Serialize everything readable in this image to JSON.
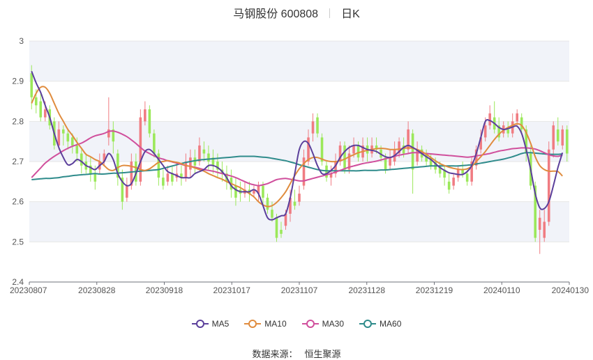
{
  "header": {
    "title": "马钢股份 600808",
    "period": "日K"
  },
  "source": {
    "label": "数据来源：",
    "value": "恒生聚源"
  },
  "chart_data": {
    "type": "candlestick",
    "yticks": [
      2.4,
      2.5,
      2.6,
      2.7,
      2.8,
      2.9,
      3
    ],
    "ylim": [
      2.4,
      3.0
    ],
    "x_tick_labels": [
      "20230807",
      "20230828",
      "20230918",
      "20231017",
      "20231107",
      "20231128",
      "20231219",
      "20240110",
      "20240130"
    ],
    "colors": {
      "up": "#f07c82",
      "down": "#9be85a",
      "ma5": "#5b3f9b",
      "ma10": "#e08c3e",
      "ma30": "#d04f9c",
      "ma60": "#2e8b8b",
      "band": "#f1f3f9",
      "grid": "#e6e6e6"
    },
    "legend": [
      {
        "name": "MA5",
        "color": "#5b3f9b"
      },
      {
        "name": "MA10",
        "color": "#e08c3e"
      },
      {
        "name": "MA30",
        "color": "#d04f9c"
      },
      {
        "name": "MA60",
        "color": "#2e8b8b"
      }
    ],
    "candles": [
      [
        2.92,
        2.86,
        2.94,
        2.83
      ],
      [
        2.86,
        2.84,
        2.88,
        2.82
      ],
      [
        2.85,
        2.81,
        2.87,
        2.8
      ],
      [
        2.81,
        2.83,
        2.85,
        2.8
      ],
      [
        2.83,
        2.79,
        2.84,
        2.78
      ],
      [
        2.8,
        2.74,
        2.81,
        2.73
      ],
      [
        2.74,
        2.78,
        2.8,
        2.73
      ],
      [
        2.78,
        2.77,
        2.79,
        2.74
      ],
      [
        2.77,
        2.75,
        2.78,
        2.73
      ],
      [
        2.76,
        2.74,
        2.77,
        2.72
      ],
      [
        2.74,
        2.72,
        2.76,
        2.7
      ],
      [
        2.72,
        2.69,
        2.73,
        2.67
      ],
      [
        2.7,
        2.68,
        2.72,
        2.67
      ],
      [
        2.69,
        2.67,
        2.71,
        2.65
      ],
      [
        2.67,
        2.65,
        2.69,
        2.63
      ],
      [
        2.68,
        2.7,
        2.72,
        2.67
      ],
      [
        2.7,
        2.72,
        2.73,
        2.69
      ],
      [
        2.76,
        2.78,
        2.86,
        2.74
      ],
      [
        2.78,
        2.75,
        2.8,
        2.72
      ],
      [
        2.72,
        2.66,
        2.73,
        2.64
      ],
      [
        2.66,
        2.6,
        2.68,
        2.58
      ],
      [
        2.61,
        2.64,
        2.66,
        2.6
      ],
      [
        2.64,
        2.7,
        2.72,
        2.63
      ],
      [
        2.7,
        2.65,
        2.72,
        2.64
      ],
      [
        2.65,
        2.81,
        2.83,
        2.64
      ],
      [
        2.8,
        2.83,
        2.85,
        2.79
      ],
      [
        2.83,
        2.77,
        2.84,
        2.76
      ],
      [
        2.77,
        2.72,
        2.78,
        2.71
      ],
      [
        2.72,
        2.66,
        2.73,
        2.64
      ],
      [
        2.66,
        2.64,
        2.68,
        2.63
      ],
      [
        2.65,
        2.67,
        2.69,
        2.64
      ],
      [
        2.67,
        2.65,
        2.69,
        2.64
      ],
      [
        2.66,
        2.67,
        2.7,
        2.65
      ],
      [
        2.67,
        2.66,
        2.69,
        2.64
      ],
      [
        2.66,
        2.7,
        2.72,
        2.65
      ],
      [
        2.68,
        2.71,
        2.73,
        2.66
      ],
      [
        2.71,
        2.69,
        2.73,
        2.67
      ],
      [
        2.7,
        2.74,
        2.76,
        2.69
      ],
      [
        2.73,
        2.72,
        2.75,
        2.7
      ],
      [
        2.72,
        2.7,
        2.74,
        2.68
      ],
      [
        2.71,
        2.69,
        2.73,
        2.67
      ],
      [
        2.7,
        2.68,
        2.72,
        2.66
      ],
      [
        2.68,
        2.67,
        2.7,
        2.65
      ],
      [
        2.67,
        2.65,
        2.69,
        2.63
      ],
      [
        2.66,
        2.63,
        2.68,
        2.61
      ],
      [
        2.64,
        2.61,
        2.66,
        2.59
      ],
      [
        2.63,
        2.62,
        2.65,
        2.6
      ],
      [
        2.62,
        2.63,
        2.65,
        2.61
      ],
      [
        2.63,
        2.62,
        2.65,
        2.6
      ],
      [
        2.62,
        2.63,
        2.64,
        2.61
      ],
      [
        2.62,
        2.64,
        2.65,
        2.6
      ],
      [
        2.64,
        2.61,
        2.65,
        2.59
      ],
      [
        2.61,
        2.58,
        2.62,
        2.57
      ],
      [
        2.58,
        2.56,
        2.6,
        2.55
      ],
      [
        2.56,
        2.51,
        2.57,
        2.5
      ],
      [
        2.53,
        2.52,
        2.55,
        2.51
      ],
      [
        2.54,
        2.57,
        2.58,
        2.53
      ],
      [
        2.57,
        2.61,
        2.63,
        2.55
      ],
      [
        2.6,
        2.59,
        2.63,
        2.58
      ],
      [
        2.6,
        2.62,
        2.64,
        2.59
      ],
      [
        2.64,
        2.71,
        2.73,
        2.63
      ],
      [
        2.7,
        2.76,
        2.78,
        2.69
      ],
      [
        2.77,
        2.8,
        2.82,
        2.75
      ],
      [
        2.81,
        2.77,
        2.82,
        2.76
      ],
      [
        2.76,
        2.7,
        2.77,
        2.69
      ],
      [
        2.69,
        2.66,
        2.7,
        2.65
      ],
      [
        2.66,
        2.67,
        2.69,
        2.64
      ],
      [
        2.67,
        2.7,
        2.72,
        2.66
      ],
      [
        2.7,
        2.74,
        2.75,
        2.69
      ],
      [
        2.74,
        2.68,
        2.75,
        2.67
      ],
      [
        2.68,
        2.72,
        2.74,
        2.67
      ],
      [
        2.72,
        2.74,
        2.76,
        2.71
      ],
      [
        2.74,
        2.71,
        2.75,
        2.7
      ],
      [
        2.71,
        2.74,
        2.76,
        2.7
      ],
      [
        2.74,
        2.72,
        2.76,
        2.7
      ],
      [
        2.72,
        2.74,
        2.76,
        2.71
      ],
      [
        2.74,
        2.73,
        2.76,
        2.72
      ],
      [
        2.73,
        2.71,
        2.74,
        2.7
      ],
      [
        2.71,
        2.68,
        2.72,
        2.67
      ],
      [
        2.69,
        2.71,
        2.73,
        2.68
      ],
      [
        2.7,
        2.73,
        2.75,
        2.69
      ],
      [
        2.72,
        2.75,
        2.76,
        2.71
      ],
      [
        2.74,
        2.72,
        2.76,
        2.71
      ],
      [
        2.73,
        2.78,
        2.8,
        2.72
      ],
      [
        2.77,
        2.68,
        2.78,
        2.62
      ],
      [
        2.7,
        2.73,
        2.75,
        2.69
      ],
      [
        2.73,
        2.71,
        2.74,
        2.7
      ],
      [
        2.72,
        2.7,
        2.73,
        2.69
      ],
      [
        2.71,
        2.69,
        2.72,
        2.68
      ],
      [
        2.7,
        2.68,
        2.71,
        2.67
      ],
      [
        2.69,
        2.67,
        2.7,
        2.66
      ],
      [
        2.68,
        2.66,
        2.69,
        2.64
      ],
      [
        2.65,
        2.63,
        2.67,
        2.62
      ],
      [
        2.64,
        2.66,
        2.67,
        2.63
      ],
      [
        2.66,
        2.68,
        2.69,
        2.65
      ],
      [
        2.68,
        2.67,
        2.7,
        2.66
      ],
      [
        2.67,
        2.65,
        2.68,
        2.64
      ],
      [
        2.65,
        2.7,
        2.71,
        2.64
      ],
      [
        2.69,
        2.73,
        2.74,
        2.68
      ],
      [
        2.73,
        2.76,
        2.78,
        2.72
      ],
      [
        2.76,
        2.79,
        2.81,
        2.75
      ],
      [
        2.79,
        2.82,
        2.84,
        2.78
      ],
      [
        2.81,
        2.78,
        2.85,
        2.77
      ],
      [
        2.79,
        2.76,
        2.81,
        2.75
      ],
      [
        2.77,
        2.79,
        2.8,
        2.76
      ],
      [
        2.78,
        2.77,
        2.8,
        2.76
      ],
      [
        2.77,
        2.8,
        2.82,
        2.76
      ],
      [
        2.8,
        2.82,
        2.83,
        2.79
      ],
      [
        2.81,
        2.78,
        2.82,
        2.77
      ],
      [
        2.78,
        2.72,
        2.79,
        2.7
      ],
      [
        2.72,
        2.64,
        2.74,
        2.63
      ],
      [
        2.64,
        2.51,
        2.65,
        2.5
      ],
      [
        2.53,
        2.56,
        2.58,
        2.47
      ],
      [
        2.51,
        2.55,
        2.58,
        2.5
      ],
      [
        2.55,
        2.73,
        2.75,
        2.54
      ],
      [
        2.73,
        2.79,
        2.8,
        2.71
      ],
      [
        2.78,
        2.75,
        2.81,
        2.74
      ],
      [
        2.74,
        2.78,
        2.79,
        2.73
      ],
      [
        2.78,
        2.72,
        2.79,
        2.7
      ]
    ],
    "ma5": [
      2.925,
      2.896,
      2.872,
      2.84,
      2.81,
      2.77,
      2.735,
      2.71,
      2.692,
      2.695,
      2.705,
      2.7,
      2.69,
      2.685,
      2.68,
      2.69,
      2.7,
      2.72,
      2.705,
      2.67,
      2.65,
      2.64,
      2.645,
      2.67,
      2.7,
      2.725,
      2.73,
      2.72,
      2.705,
      2.69,
      2.675,
      2.67,
      2.665,
      2.66,
      2.66,
      2.66,
      2.67,
      2.675,
      2.68,
      2.69,
      2.69,
      2.685,
      2.675,
      2.66,
      2.64,
      2.63,
      2.625,
      2.625,
      2.625,
      2.63,
      2.62,
      2.59,
      2.56,
      2.555,
      2.56,
      2.565,
      2.57,
      2.61,
      2.67,
      2.73,
      2.75,
      2.745,
      2.72,
      2.69,
      2.67,
      2.67,
      2.678,
      2.69,
      2.71,
      2.725,
      2.735,
      2.74,
      2.74,
      2.735,
      2.73,
      2.728,
      2.725,
      2.718,
      2.712,
      2.71,
      2.715,
      2.725,
      2.735,
      2.74,
      2.735,
      2.728,
      2.72,
      2.712,
      2.705,
      2.695,
      2.685,
      2.678,
      2.672,
      2.67,
      2.668,
      2.668,
      2.675,
      2.69,
      2.72,
      2.76,
      2.8,
      2.802,
      2.795,
      2.785,
      2.78,
      2.782,
      2.786,
      2.788,
      2.77,
      2.73,
      2.68,
      2.62,
      2.585,
      2.583,
      2.6,
      2.64,
      2.685,
      2.722
    ],
    "ma10": [
      2.845,
      2.87,
      2.885,
      2.885,
      2.87,
      2.845,
      2.82,
      2.8,
      2.78,
      2.765,
      2.748,
      2.733,
      2.718,
      2.712,
      2.705,
      2.7,
      2.69,
      2.68,
      2.678,
      2.685,
      2.69,
      2.69,
      2.688,
      2.685,
      2.68,
      2.678,
      2.682,
      2.69,
      2.698,
      2.7,
      2.702,
      2.7,
      2.698,
      2.695,
      2.69,
      2.688,
      2.684,
      2.68,
      2.676,
      2.67,
      2.665,
      2.66,
      2.656,
      2.65,
      2.645,
      2.64,
      2.635,
      2.628,
      2.62,
      2.612,
      2.6,
      2.592,
      2.588,
      2.59,
      2.598,
      2.61,
      2.625,
      2.645,
      2.665,
      2.682,
      2.695,
      2.705,
      2.71,
      2.71,
      2.706,
      2.702,
      2.7,
      2.7,
      2.702,
      2.706,
      2.712,
      2.717,
      2.722,
      2.725,
      2.728,
      2.73,
      2.732,
      2.733,
      2.732,
      2.73,
      2.73,
      2.731,
      2.733,
      2.734,
      2.733,
      2.73,
      2.725,
      2.718,
      2.71,
      2.702,
      2.695,
      2.69,
      2.686,
      2.683,
      2.681,
      2.68,
      2.682,
      2.688,
      2.7,
      2.712,
      2.725,
      2.74,
      2.755,
      2.768,
      2.778,
      2.785,
      2.79,
      2.794,
      2.79,
      2.772,
      2.745,
      2.712,
      2.69,
      2.68,
      2.676,
      2.676,
      2.675,
      2.664
    ],
    "ma30": [
      2.66,
      2.672,
      2.684,
      2.696,
      2.705,
      2.713,
      2.72,
      2.727,
      2.733,
      2.738,
      2.742,
      2.746,
      2.752,
      2.759,
      2.764,
      2.767,
      2.77,
      2.775,
      2.776,
      2.773,
      2.768,
      2.762,
      2.754,
      2.745,
      2.735,
      2.726,
      2.72,
      2.714,
      2.709,
      2.706,
      2.702,
      2.699,
      2.696,
      2.693,
      2.69,
      2.688,
      2.686,
      2.683,
      2.68,
      2.678,
      2.676,
      2.673,
      2.67,
      2.667,
      2.664,
      2.66,
      2.655,
      2.65,
      2.645,
      2.642,
      2.64,
      2.642,
      2.645,
      2.65,
      2.655,
      2.657,
      2.658,
      2.656,
      2.654,
      2.652,
      2.652,
      2.655,
      2.658,
      2.661,
      2.664,
      2.667,
      2.67,
      2.674,
      2.678,
      2.682,
      2.686,
      2.689,
      2.692,
      2.695,
      2.697,
      2.699,
      2.701,
      2.704,
      2.707,
      2.71,
      2.713,
      2.716,
      2.718,
      2.72,
      2.722,
      2.722,
      2.721,
      2.72,
      2.719,
      2.718,
      2.717,
      2.716,
      2.715,
      2.714,
      2.713,
      2.712,
      2.711,
      2.712,
      2.714,
      2.716,
      2.718,
      2.72,
      2.723,
      2.726,
      2.728,
      2.73,
      2.732,
      2.733,
      2.734,
      2.734,
      2.733,
      2.731,
      2.727,
      2.722,
      2.717,
      2.714,
      2.713,
      2.716
    ],
    "ma60": [
      2.655,
      2.656,
      2.657,
      2.658,
      2.658,
      2.659,
      2.66,
      2.662,
      2.663,
      2.665,
      2.666,
      2.667,
      2.668,
      2.669,
      2.67,
      2.669,
      2.669,
      2.67,
      2.671,
      2.671,
      2.672,
      2.673,
      2.674,
      2.675,
      2.676,
      2.677,
      2.678,
      2.679,
      2.68,
      2.683,
      2.686,
      2.689,
      2.692,
      2.695,
      2.698,
      2.7,
      2.702,
      2.704,
      2.705,
      2.706,
      2.707,
      2.708,
      2.709,
      2.71,
      2.711,
      2.712,
      2.713,
      2.713,
      2.713,
      2.713,
      2.712,
      2.711,
      2.71,
      2.708,
      2.706,
      2.704,
      2.702,
      2.699,
      2.696,
      2.692,
      2.689,
      2.686,
      2.683,
      2.68,
      2.678,
      2.677,
      2.677,
      2.677,
      2.677,
      2.677,
      2.677,
      2.677,
      2.677,
      2.678,
      2.678,
      2.678,
      2.678,
      2.679,
      2.679,
      2.68,
      2.681,
      2.682,
      2.683,
      2.684,
      2.685,
      2.686,
      2.687,
      2.688,
      2.689,
      2.689,
      2.689,
      2.689,
      2.689,
      2.689,
      2.689,
      2.69,
      2.691,
      2.692,
      2.694,
      2.696,
      2.698,
      2.7,
      2.702,
      2.704,
      2.706,
      2.709,
      2.712,
      2.716,
      2.72,
      2.722,
      2.722,
      2.721,
      2.72,
      2.719,
      2.718,
      2.718,
      2.718,
      2.719
    ]
  }
}
